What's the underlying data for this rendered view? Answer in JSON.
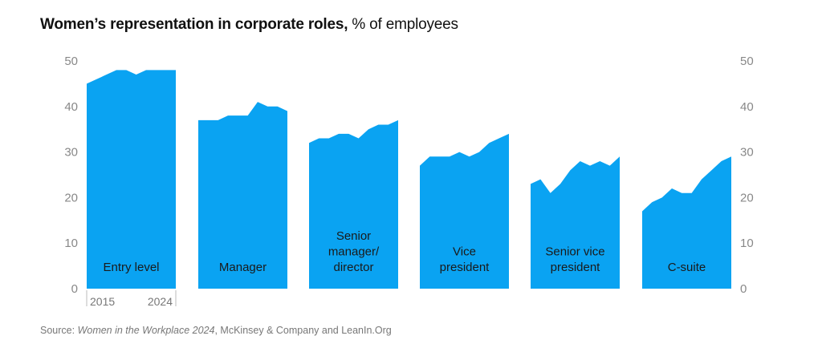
{
  "header": {
    "title_bold": "Women’s representation in corporate roles,",
    "title_unit": "% of employees"
  },
  "footer": {
    "source_prefix": "Source: ",
    "source_italic": "Women in the Workplace 2024",
    "source_suffix": ", McKinsey & Company and LeanIn.Org"
  },
  "chart_data": {
    "type": "area",
    "title": "Women’s representation in corporate roles, % of employees",
    "ylim": [
      0,
      50
    ],
    "y_ticks": [
      0,
      10,
      20,
      30,
      40,
      50
    ],
    "x_range_label": [
      "2015",
      "2024"
    ],
    "x": [
      2015,
      2016,
      2017,
      2018,
      2019,
      2020,
      2021,
      2022,
      2023,
      2024
    ],
    "fill_color": "#0aa3f2",
    "grid": false,
    "series": [
      {
        "name": "Entry level",
        "label_lines": [
          "Entry level"
        ],
        "values": [
          45,
          46,
          47,
          48,
          48,
          47,
          48,
          48,
          48,
          48
        ]
      },
      {
        "name": "Manager",
        "label_lines": [
          "Manager"
        ],
        "values": [
          37,
          37,
          37,
          38,
          38,
          38,
          41,
          40,
          40,
          39
        ]
      },
      {
        "name": "Senior manager/director",
        "label_lines": [
          "Senior",
          "manager/",
          "director"
        ],
        "values": [
          32,
          33,
          33,
          34,
          34,
          33,
          35,
          36,
          36,
          37
        ]
      },
      {
        "name": "Vice president",
        "label_lines": [
          "Vice",
          "president"
        ],
        "values": [
          27,
          29,
          29,
          29,
          30,
          29,
          30,
          32,
          33,
          34
        ]
      },
      {
        "name": "Senior vice president",
        "label_lines": [
          "Senior vice",
          "president"
        ],
        "values": [
          23,
          24,
          21,
          23,
          26,
          28,
          27,
          28,
          27,
          29
        ]
      },
      {
        "name": "C-suite",
        "label_lines": [
          "C-suite"
        ],
        "values": [
          17,
          19,
          20,
          22,
          21,
          21,
          24,
          26,
          28,
          29
        ]
      }
    ]
  }
}
